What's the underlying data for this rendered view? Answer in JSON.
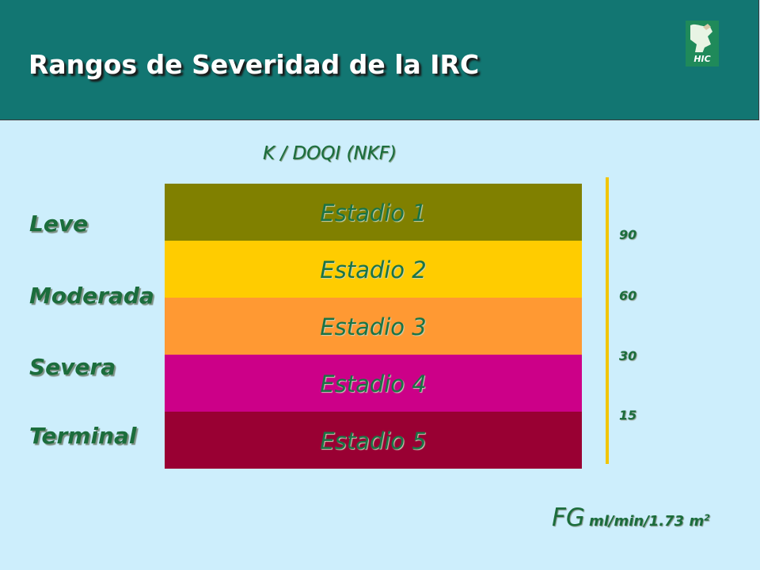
{
  "header": {
    "title": "Rangos de Severidad de la IRC",
    "logo_text": "HIC",
    "background": "#127672"
  },
  "subtitle": "K / DOQI (NKF)",
  "stages": [
    {
      "label": "Estadio 1",
      "color": "#808000"
    },
    {
      "label": "Estadio 2",
      "color": "#ffcc00"
    },
    {
      "label": "Estadio 3",
      "color": "#ff9933"
    },
    {
      "label": "Estadio 4",
      "color": "#cc0088"
    },
    {
      "label": "Estadio 5",
      "color": "#990033"
    }
  ],
  "severity_levels": [
    "Leve",
    "Moderada",
    "Severa",
    "Terminal"
  ],
  "gfr_ticks": [
    "90",
    "60",
    "30",
    "15"
  ],
  "gfr_label": {
    "main": "FG",
    "unit": "ml/min/1.73 m",
    "superscript": "2"
  },
  "colors": {
    "background": "#cdeefc",
    "text_green": "#1b6d3c",
    "scale_line": "#f2c500"
  }
}
